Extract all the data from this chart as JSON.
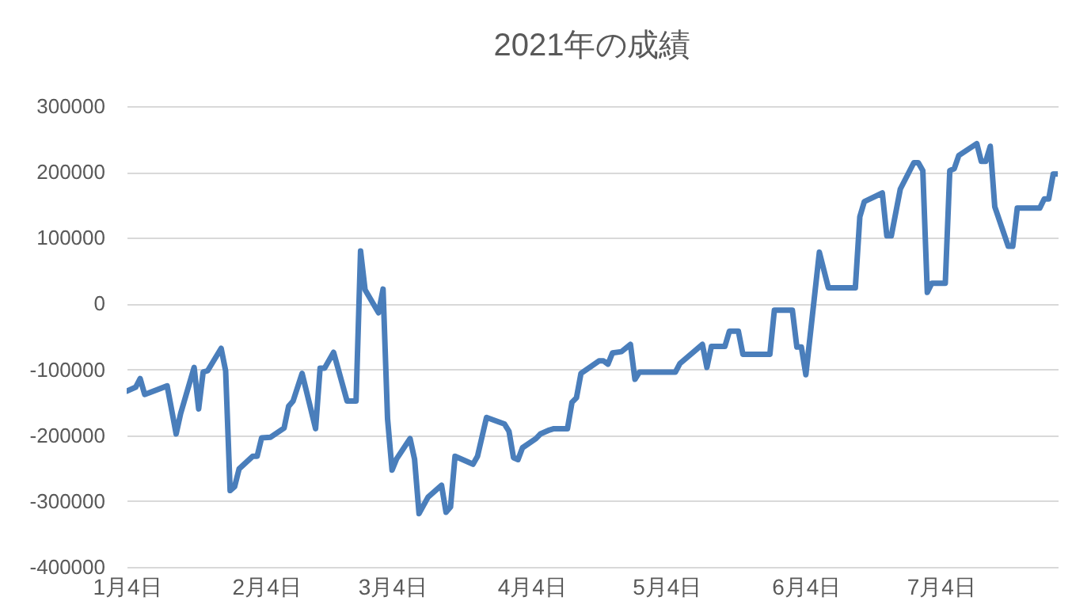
{
  "chart_data": {
    "type": "line",
    "title": "2021年の成績",
    "x": [
      "2021-01-04",
      "2021-01-06",
      "2021-01-07",
      "2021-01-08",
      "2021-01-13",
      "2021-01-15",
      "2021-01-16",
      "2021-01-19",
      "2021-01-20",
      "2021-01-21",
      "2021-01-22",
      "2021-01-25",
      "2021-01-26",
      "2021-01-27",
      "2021-01-28",
      "2021-01-29",
      "2021-02-01",
      "2021-02-02",
      "2021-02-03",
      "2021-02-05",
      "2021-02-08",
      "2021-02-09",
      "2021-02-10",
      "2021-02-12",
      "2021-02-15",
      "2021-02-16",
      "2021-02-17",
      "2021-02-19",
      "2021-02-22",
      "2021-02-24",
      "2021-02-25",
      "2021-02-26",
      "2021-03-01",
      "2021-03-02",
      "2021-03-03",
      "2021-03-04",
      "2021-03-05",
      "2021-03-08",
      "2021-03-09",
      "2021-03-10",
      "2021-03-12",
      "2021-03-15",
      "2021-03-16",
      "2021-03-17",
      "2021-03-18",
      "2021-03-22",
      "2021-03-23",
      "2021-03-25",
      "2021-03-29",
      "2021-03-30",
      "2021-03-31",
      "2021-04-01",
      "2021-04-02",
      "2021-04-05",
      "2021-04-06",
      "2021-04-08",
      "2021-04-09",
      "2021-04-12",
      "2021-04-13",
      "2021-04-14",
      "2021-04-15",
      "2021-04-19",
      "2021-04-20",
      "2021-04-21",
      "2021-04-22",
      "2021-04-24",
      "2021-04-26",
      "2021-04-27",
      "2021-04-28",
      "2021-05-06",
      "2021-05-07",
      "2021-05-12",
      "2021-05-13",
      "2021-05-14",
      "2021-05-17",
      "2021-05-18",
      "2021-05-20",
      "2021-05-21",
      "2021-05-27",
      "2021-05-28",
      "2021-06-01",
      "2021-06-02",
      "2021-06-03",
      "2021-06-04",
      "2021-06-07",
      "2021-06-09",
      "2021-06-15",
      "2021-06-16",
      "2021-06-17",
      "2021-06-21",
      "2021-06-22",
      "2021-06-23",
      "2021-06-25",
      "2021-06-28",
      "2021-06-29",
      "2021-06-30",
      "2021-07-01",
      "2021-07-02",
      "2021-07-05",
      "2021-07-06",
      "2021-07-07",
      "2021-07-08",
      "2021-07-12",
      "2021-07-13",
      "2021-07-14",
      "2021-07-15",
      "2021-07-16",
      "2021-07-19",
      "2021-07-20",
      "2021-07-21",
      "2021-07-26",
      "2021-07-27",
      "2021-07-28",
      "2021-07-29",
      "2021-07-30"
    ],
    "series": [
      {
        "color": "#4a7ebb",
        "values": [
          -133000,
          -127000,
          -114000,
          -138000,
          -125000,
          -198000,
          -167000,
          -97000,
          -160000,
          -104000,
          -102000,
          -68000,
          -102000,
          -284000,
          -278000,
          -251000,
          -232000,
          -232000,
          -204000,
          -203000,
          -189000,
          -156000,
          -148000,
          -106000,
          -190000,
          -98000,
          -98000,
          -74000,
          -148000,
          -148000,
          80000,
          21000,
          -14000,
          22000,
          -175000,
          -253000,
          -236000,
          -205000,
          -236000,
          -319000,
          -294000,
          -276000,
          -317000,
          -309000,
          -232000,
          -244000,
          -232000,
          -173000,
          -183000,
          -194000,
          -234000,
          -237000,
          -219000,
          -205000,
          -198000,
          -192000,
          -190000,
          -190000,
          -150000,
          -143000,
          -106000,
          -87000,
          -87000,
          -92000,
          -75000,
          -73000,
          -62000,
          -115000,
          -104000,
          -104000,
          -91000,
          -62000,
          -97000,
          -65000,
          -65000,
          -42000,
          -42000,
          -77000,
          -77000,
          -10000,
          -10000,
          -66000,
          -66000,
          -108000,
          78000,
          24000,
          24000,
          132000,
          155000,
          168000,
          103000,
          103000,
          174000,
          214000,
          214000,
          202000,
          17000,
          31000,
          31000,
          202000,
          205000,
          225000,
          243000,
          216000,
          216000,
          239000,
          147000,
          87000,
          87000,
          145000,
          145000,
          159000,
          159000,
          197000,
          197000
        ]
      }
    ],
    "xlim": [
      "2021-01-04",
      "2021-07-30"
    ],
    "xticks": [
      {
        "value": "2021-01-04",
        "label": "1月4日"
      },
      {
        "value": "2021-02-04",
        "label": "2月4日"
      },
      {
        "value": "2021-03-04",
        "label": "3月4日"
      },
      {
        "value": "2021-04-04",
        "label": "4月4日"
      },
      {
        "value": "2021-05-04",
        "label": "5月4日"
      },
      {
        "value": "2021-06-04",
        "label": "6月4日"
      },
      {
        "value": "2021-07-04",
        "label": "7月4日"
      }
    ],
    "ylim": [
      -400000,
      300000
    ],
    "yticks": [
      -400000,
      -300000,
      -200000,
      -100000,
      0,
      100000,
      200000,
      300000
    ],
    "grid": "y",
    "line_style": "solid"
  }
}
